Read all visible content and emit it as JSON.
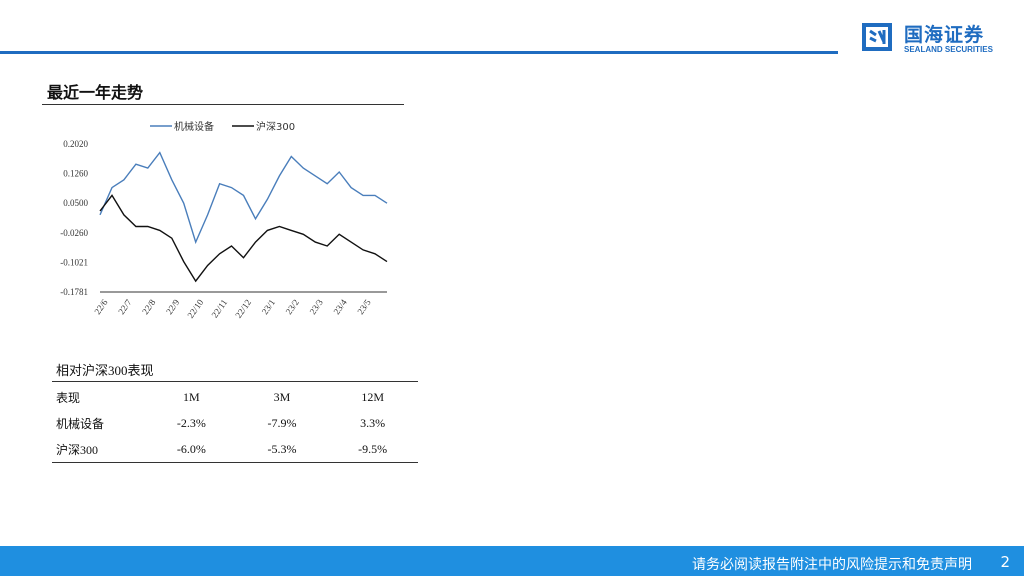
{
  "colors": {
    "brand_blue": "#1f6cc0",
    "series_1": "#4a7ebb",
    "series_2": "#111111",
    "footer_blue": "#1f8fe0"
  },
  "logo": {
    "name_cn": "国海证券",
    "name_en": "SEALAND SECURITIES",
    "icon": "sealand-logo-icon"
  },
  "section_title": "最近一年走势",
  "chart_data": {
    "type": "line",
    "legend": [
      "机械设备",
      "沪深300"
    ],
    "legend_position": "top",
    "y_ticks": [
      "0.2020",
      "0.1260",
      "0.0500",
      "-0.0260",
      "-0.1021",
      "-0.1781"
    ],
    "ylim": [
      -0.1781,
      0.202
    ],
    "x_ticks": [
      "22/6",
      "22/7",
      "22/8",
      "22/9",
      "22/10",
      "22/11",
      "22/12",
      "23/1",
      "23/2",
      "23/3",
      "23/4",
      "23/5"
    ],
    "x": [
      "22/6",
      "22/6.5",
      "22/7",
      "22/7.5",
      "22/8",
      "22/8.5",
      "22/9",
      "22/9.5",
      "22/10",
      "22/10.5",
      "22/11",
      "22/11.5",
      "22/12",
      "22/12.5",
      "23/1",
      "23/1.5",
      "23/2",
      "23/2.5",
      "23/3",
      "23/3.5",
      "23/4",
      "23/4.5",
      "23/5",
      "23/5.5",
      "23/6"
    ],
    "series": [
      {
        "name": "机械设备",
        "values": [
          0.02,
          0.09,
          0.11,
          0.15,
          0.14,
          0.18,
          0.11,
          0.05,
          -0.05,
          0.02,
          0.1,
          0.09,
          0.07,
          0.01,
          0.06,
          0.12,
          0.17,
          0.14,
          0.12,
          0.1,
          0.13,
          0.09,
          0.07,
          0.07,
          0.05
        ]
      },
      {
        "name": "沪深300",
        "values": [
          0.03,
          0.07,
          0.02,
          -0.01,
          -0.01,
          -0.02,
          -0.04,
          -0.1,
          -0.15,
          -0.11,
          -0.08,
          -0.06,
          -0.09,
          -0.05,
          -0.02,
          -0.01,
          -0.02,
          -0.03,
          -0.05,
          -0.06,
          -0.03,
          -0.05,
          -0.07,
          -0.08,
          -0.1
        ]
      }
    ]
  },
  "performance": {
    "title": "相对沪深300表现",
    "headers": [
      "表现",
      "1M",
      "3M",
      "12M"
    ],
    "rows": [
      [
        "机械设备",
        "-2.3%",
        "-7.9%",
        "3.3%"
      ],
      [
        "沪深300",
        "-6.0%",
        "-5.3%",
        "-9.5%"
      ]
    ]
  },
  "footer": {
    "disclaimer": "请务必阅读报告附注中的风险提示和免责声明",
    "page_number": "2"
  }
}
